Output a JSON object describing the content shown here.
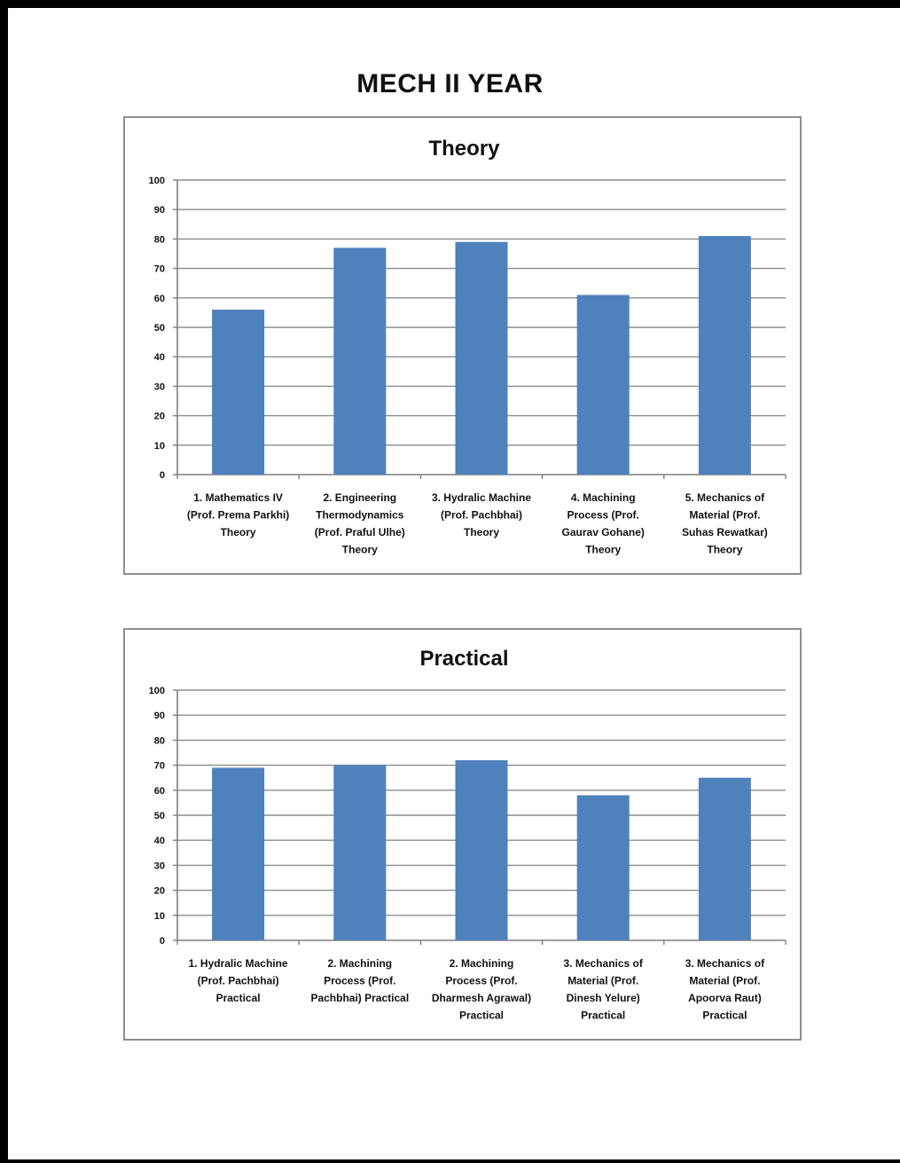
{
  "page": {
    "title": "MECH II YEAR"
  },
  "colors": {
    "bar": "#4f81bd",
    "grid": "#8c8c8c",
    "axis": "#7f7f7f",
    "frame": "#000000"
  },
  "chart_data": [
    {
      "type": "bar",
      "title": "Theory",
      "xlabel": "",
      "ylabel": "",
      "ylim": [
        0,
        100
      ],
      "yticks": [
        0,
        10,
        20,
        30,
        40,
        50,
        60,
        70,
        80,
        90,
        100
      ],
      "grid": true,
      "legend": "none",
      "categories": [
        [
          "1. Mathematics IV",
          "(Prof. Prema Parkhi)",
          "Theory"
        ],
        [
          "2. Engineering",
          "Thermodynamics",
          "(Prof. Praful Ulhe)",
          "Theory"
        ],
        [
          "3. Hydralic Machine",
          "(Prof. Pachbhai)",
          "Theory"
        ],
        [
          "4. Machining",
          "Process (Prof.",
          "Gaurav Gohane)",
          "Theory"
        ],
        [
          "5. Mechanics of",
          "Material (Prof.",
          "Suhas Rewatkar)",
          "Theory"
        ]
      ],
      "values": [
        56,
        77,
        79,
        61,
        81
      ]
    },
    {
      "type": "bar",
      "title": "Practical",
      "xlabel": "",
      "ylabel": "",
      "ylim": [
        0,
        100
      ],
      "yticks": [
        0,
        10,
        20,
        30,
        40,
        50,
        60,
        70,
        80,
        90,
        100
      ],
      "grid": true,
      "legend": "none",
      "categories": [
        [
          "1. Hydralic Machine",
          "(Prof. Pachbhai)",
          "Practical"
        ],
        [
          "2. Machining",
          "Process (Prof.",
          "Pachbhai) Practical"
        ],
        [
          "2. Machining",
          "Process (Prof.",
          "Dharmesh Agrawal)",
          "Practical"
        ],
        [
          "3. Mechanics of",
          "Material (Prof.",
          "Dinesh Yelure)",
          "Practical"
        ],
        [
          "3. Mechanics of",
          "Material (Prof.",
          "Apoorva Raut)",
          "Practical"
        ]
      ],
      "values": [
        69,
        70,
        72,
        58,
        65
      ]
    }
  ]
}
